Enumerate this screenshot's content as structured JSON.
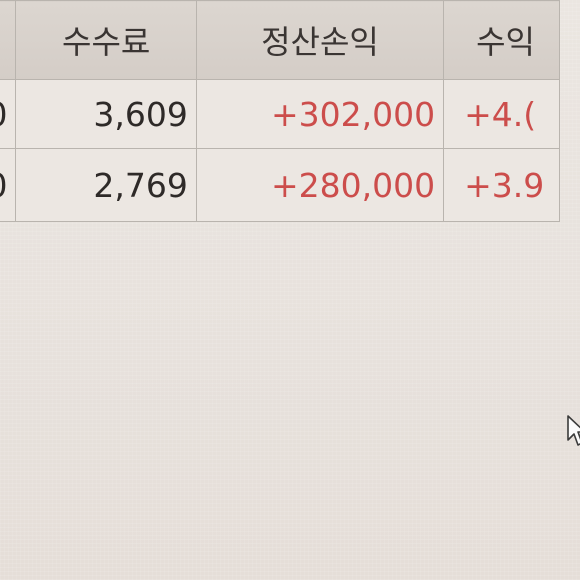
{
  "table": {
    "columns": [
      {
        "label": ""
      },
      {
        "label": "수수료"
      },
      {
        "label": "정산손익"
      },
      {
        "label": "수익"
      }
    ],
    "rows": [
      {
        "prev": "0",
        "fee": "3,609",
        "settlement_pnl": "+302,000",
        "return": "+4.("
      },
      {
        "prev": "0",
        "fee": "2,769",
        "settlement_pnl": "+280,000",
        "return": "+3.9"
      }
    ]
  },
  "colors": {
    "profit_red": "#cc4d4b",
    "header_bg": "#d6d0ca",
    "cell_bg": "#ece7e2",
    "grid_line": "#b9b4ae"
  },
  "cursor": {
    "icon": "mouse-pointer-icon"
  }
}
